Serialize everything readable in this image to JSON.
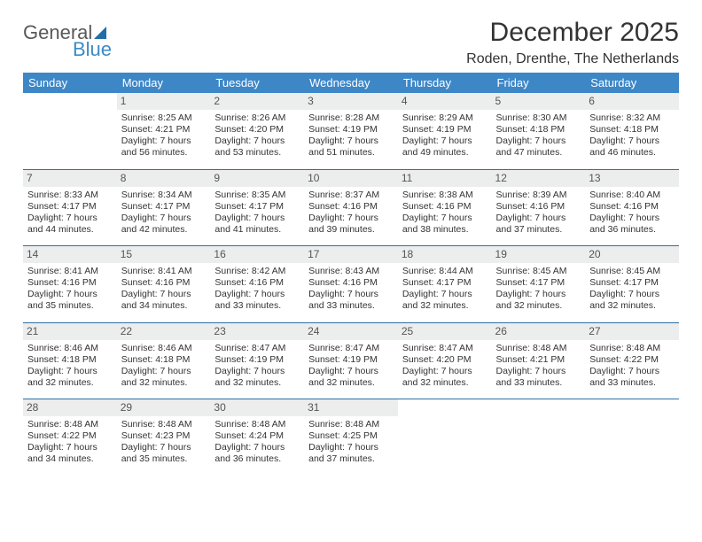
{
  "brand": {
    "general": "General",
    "blue": "Blue"
  },
  "title": "December 2025",
  "location": "Roden, Drenthe, The Netherlands",
  "colors": {
    "header_bg": "#3d87c7",
    "header_text": "#ffffff",
    "daynum_bg": "#eceded",
    "rule": "#2f6fa3",
    "brand_gray": "#58595b",
    "brand_blue": "#3b8bc6"
  },
  "dayHeaders": [
    "Sunday",
    "Monday",
    "Tuesday",
    "Wednesday",
    "Thursday",
    "Friday",
    "Saturday"
  ],
  "weeks": [
    [
      null,
      {
        "n": "1",
        "sr": "8:25 AM",
        "ss": "4:21 PM",
        "dl": "7 hours and 56 minutes."
      },
      {
        "n": "2",
        "sr": "8:26 AM",
        "ss": "4:20 PM",
        "dl": "7 hours and 53 minutes."
      },
      {
        "n": "3",
        "sr": "8:28 AM",
        "ss": "4:19 PM",
        "dl": "7 hours and 51 minutes."
      },
      {
        "n": "4",
        "sr": "8:29 AM",
        "ss": "4:19 PM",
        "dl": "7 hours and 49 minutes."
      },
      {
        "n": "5",
        "sr": "8:30 AM",
        "ss": "4:18 PM",
        "dl": "7 hours and 47 minutes."
      },
      {
        "n": "6",
        "sr": "8:32 AM",
        "ss": "4:18 PM",
        "dl": "7 hours and 46 minutes."
      }
    ],
    [
      {
        "n": "7",
        "sr": "8:33 AM",
        "ss": "4:17 PM",
        "dl": "7 hours and 44 minutes."
      },
      {
        "n": "8",
        "sr": "8:34 AM",
        "ss": "4:17 PM",
        "dl": "7 hours and 42 minutes."
      },
      {
        "n": "9",
        "sr": "8:35 AM",
        "ss": "4:17 PM",
        "dl": "7 hours and 41 minutes."
      },
      {
        "n": "10",
        "sr": "8:37 AM",
        "ss": "4:16 PM",
        "dl": "7 hours and 39 minutes."
      },
      {
        "n": "11",
        "sr": "8:38 AM",
        "ss": "4:16 PM",
        "dl": "7 hours and 38 minutes."
      },
      {
        "n": "12",
        "sr": "8:39 AM",
        "ss": "4:16 PM",
        "dl": "7 hours and 37 minutes."
      },
      {
        "n": "13",
        "sr": "8:40 AM",
        "ss": "4:16 PM",
        "dl": "7 hours and 36 minutes."
      }
    ],
    [
      {
        "n": "14",
        "sr": "8:41 AM",
        "ss": "4:16 PM",
        "dl": "7 hours and 35 minutes."
      },
      {
        "n": "15",
        "sr": "8:41 AM",
        "ss": "4:16 PM",
        "dl": "7 hours and 34 minutes."
      },
      {
        "n": "16",
        "sr": "8:42 AM",
        "ss": "4:16 PM",
        "dl": "7 hours and 33 minutes."
      },
      {
        "n": "17",
        "sr": "8:43 AM",
        "ss": "4:16 PM",
        "dl": "7 hours and 33 minutes."
      },
      {
        "n": "18",
        "sr": "8:44 AM",
        "ss": "4:17 PM",
        "dl": "7 hours and 32 minutes."
      },
      {
        "n": "19",
        "sr": "8:45 AM",
        "ss": "4:17 PM",
        "dl": "7 hours and 32 minutes."
      },
      {
        "n": "20",
        "sr": "8:45 AM",
        "ss": "4:17 PM",
        "dl": "7 hours and 32 minutes."
      }
    ],
    [
      {
        "n": "21",
        "sr": "8:46 AM",
        "ss": "4:18 PM",
        "dl": "7 hours and 32 minutes."
      },
      {
        "n": "22",
        "sr": "8:46 AM",
        "ss": "4:18 PM",
        "dl": "7 hours and 32 minutes."
      },
      {
        "n": "23",
        "sr": "8:47 AM",
        "ss": "4:19 PM",
        "dl": "7 hours and 32 minutes."
      },
      {
        "n": "24",
        "sr": "8:47 AM",
        "ss": "4:19 PM",
        "dl": "7 hours and 32 minutes."
      },
      {
        "n": "25",
        "sr": "8:47 AM",
        "ss": "4:20 PM",
        "dl": "7 hours and 32 minutes."
      },
      {
        "n": "26",
        "sr": "8:48 AM",
        "ss": "4:21 PM",
        "dl": "7 hours and 33 minutes."
      },
      {
        "n": "27",
        "sr": "8:48 AM",
        "ss": "4:22 PM",
        "dl": "7 hours and 33 minutes."
      }
    ],
    [
      {
        "n": "28",
        "sr": "8:48 AM",
        "ss": "4:22 PM",
        "dl": "7 hours and 34 minutes."
      },
      {
        "n": "29",
        "sr": "8:48 AM",
        "ss": "4:23 PM",
        "dl": "7 hours and 35 minutes."
      },
      {
        "n": "30",
        "sr": "8:48 AM",
        "ss": "4:24 PM",
        "dl": "7 hours and 36 minutes."
      },
      {
        "n": "31",
        "sr": "8:48 AM",
        "ss": "4:25 PM",
        "dl": "7 hours and 37 minutes."
      },
      null,
      null,
      null
    ]
  ],
  "labels": {
    "sunrise": "Sunrise:",
    "sunset": "Sunset:",
    "daylight": "Daylight:"
  }
}
